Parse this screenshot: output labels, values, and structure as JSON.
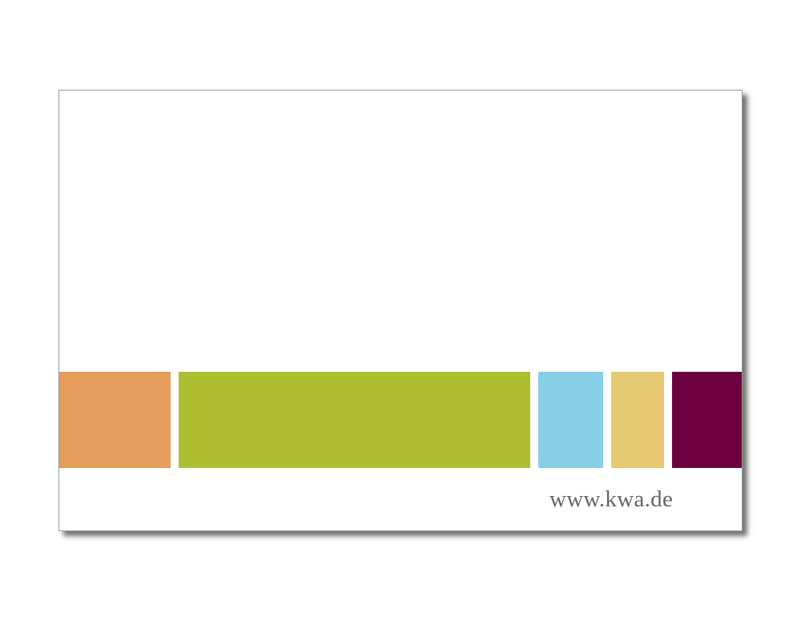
{
  "card": {
    "url": "www.kwa.de"
  }
}
